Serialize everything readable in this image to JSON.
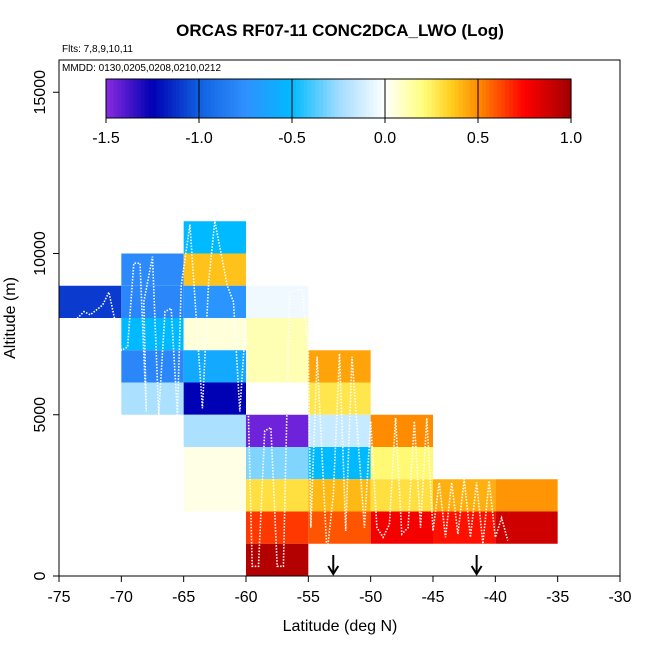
{
  "chart_data": {
    "type": "heatmap",
    "title": "ORCAS RF07-11 CONC2DCA_LWO (Log)",
    "flights_label": "Flts: 7,8,9,10,11",
    "dates_label": "MMDD: 0130,0205,0208,0210,0212",
    "xlabel": "Latitude (deg N)",
    "ylabel": "Altitude (m)",
    "xlim": [
      -75,
      -30
    ],
    "ylim": [
      0,
      16000
    ],
    "x_ticks": [
      -75,
      -70,
      -65,
      -60,
      -55,
      -50,
      -45,
      -40,
      -35,
      -30
    ],
    "y_ticks": [
      0,
      5000,
      10000,
      15000
    ],
    "x_tick_labels": [
      "-75",
      "-70",
      "-65",
      "-60",
      "-55",
      "-50",
      "-45",
      "-40",
      "-35",
      "-30"
    ],
    "y_tick_labels": [
      "0",
      "5000",
      "10000",
      "15000"
    ],
    "colorbar": {
      "range": [
        -1.5,
        1.0
      ],
      "ticks": [
        -1.5,
        -1.0,
        -0.5,
        0.0,
        0.5,
        1.0
      ],
      "tick_labels": [
        "-1.5",
        "-1.0",
        "-0.5",
        "0.0",
        "0.5",
        "1.0"
      ],
      "stops": [
        {
          "v": -1.5,
          "c": "#8a2be2"
        },
        {
          "v": -1.25,
          "c": "#0000b4"
        },
        {
          "v": -1.0,
          "c": "#1060e0"
        },
        {
          "v": -0.75,
          "c": "#3090ff"
        },
        {
          "v": -0.5,
          "c": "#00baff"
        },
        {
          "v": -0.25,
          "c": "#a0dcff"
        },
        {
          "v": 0.0,
          "c": "#ffffff"
        },
        {
          "v": 0.2,
          "c": "#ffff80"
        },
        {
          "v": 0.35,
          "c": "#ffd020"
        },
        {
          "v": 0.5,
          "c": "#ff8c00"
        },
        {
          "v": 0.75,
          "c": "#ff0000"
        },
        {
          "v": 1.0,
          "c": "#a00000"
        }
      ]
    },
    "bin_height_m": 1000,
    "cells": [
      {
        "lat": -75,
        "lat2": -70,
        "alt": 8000,
        "alt2": 9000,
        "value": -1.1
      },
      {
        "lat": -70,
        "lat2": -65,
        "alt": 9000,
        "alt2": 10000,
        "value": -0.78
      },
      {
        "lat": -70,
        "lat2": -65,
        "alt": 8000,
        "alt2": 9000,
        "value": -0.8
      },
      {
        "lat": -70,
        "lat2": -65,
        "alt": 7000,
        "alt2": 8000,
        "value": -0.5
      },
      {
        "lat": -70,
        "lat2": -65,
        "alt": 6000,
        "alt2": 7000,
        "value": -0.8
      },
      {
        "lat": -70,
        "lat2": -65,
        "alt": 5000,
        "alt2": 6000,
        "value": -0.22
      },
      {
        "lat": -65,
        "lat2": -60,
        "alt": 10000,
        "alt2": 11000,
        "value": -0.5
      },
      {
        "lat": -65,
        "lat2": -60,
        "alt": 9000,
        "alt2": 10000,
        "value": 0.38
      },
      {
        "lat": -65,
        "lat2": -60,
        "alt": 8000,
        "alt2": 9000,
        "value": -0.72
      },
      {
        "lat": -65,
        "lat2": -60,
        "alt": 7000,
        "alt2": 8000,
        "value": 0.06
      },
      {
        "lat": -65,
        "lat2": -60,
        "alt": 6000,
        "alt2": 7000,
        "value": -0.6
      },
      {
        "lat": -65,
        "lat2": -60,
        "alt": 5000,
        "alt2": 6000,
        "value": -1.25
      },
      {
        "lat": -65,
        "lat2": -60,
        "alt": 4000,
        "alt2": 5000,
        "value": -0.22
      },
      {
        "lat": -65,
        "lat2": -60,
        "alt": 2000,
        "alt2": 4000,
        "value": 0.04
      },
      {
        "lat": -60,
        "lat2": -55,
        "alt": 8000,
        "alt2": 9000,
        "value": -0.04
      },
      {
        "lat": -60,
        "lat2": -55,
        "alt": 6000,
        "alt2": 8000,
        "value": 0.12
      },
      {
        "lat": -60,
        "lat2": -55,
        "alt": 4000,
        "alt2": 5000,
        "value": -1.45
      },
      {
        "lat": -60,
        "lat2": -55,
        "alt": 3000,
        "alt2": 4000,
        "value": -0.3
      },
      {
        "lat": -60,
        "lat2": -55,
        "alt": 2000,
        "alt2": 3000,
        "value": 0.3
      },
      {
        "lat": -60,
        "lat2": -55,
        "alt": 1000,
        "alt2": 2000,
        "value": 0.65
      },
      {
        "lat": -60,
        "lat2": -55,
        "alt": 0,
        "alt2": 1000,
        "value": 0.95
      },
      {
        "lat": -55,
        "lat2": -50,
        "alt": 6000,
        "alt2": 7000,
        "value": 0.45
      },
      {
        "lat": -55,
        "lat2": -50,
        "alt": 5000,
        "alt2": 6000,
        "value": 0.28
      },
      {
        "lat": -55,
        "lat2": -50,
        "alt": 4000,
        "alt2": 5000,
        "value": -0.15
      },
      {
        "lat": -55,
        "lat2": -50,
        "alt": 3000,
        "alt2": 4000,
        "value": -0.5
      },
      {
        "lat": -55,
        "lat2": -50,
        "alt": 2000,
        "alt2": 3000,
        "value": 0.4
      },
      {
        "lat": -55,
        "lat2": -50,
        "alt": 1000,
        "alt2": 2000,
        "value": 0.6
      },
      {
        "lat": -50,
        "lat2": -45,
        "alt": 4000,
        "alt2": 5000,
        "value": 0.5
      },
      {
        "lat": -50,
        "lat2": -45,
        "alt": 3000,
        "alt2": 4000,
        "value": 0.22
      },
      {
        "lat": -50,
        "lat2": -45,
        "alt": 2000,
        "alt2": 3000,
        "value": 0.3
      },
      {
        "lat": -50,
        "lat2": -45,
        "alt": 1000,
        "alt2": 2000,
        "value": 0.78
      },
      {
        "lat": -45,
        "lat2": -40,
        "alt": 2000,
        "alt2": 3000,
        "value": 0.42
      },
      {
        "lat": -45,
        "lat2": -40,
        "alt": 1000,
        "alt2": 2000,
        "value": 0.72
      },
      {
        "lat": -40,
        "lat2": -35,
        "alt": 2000,
        "alt2": 3000,
        "value": 0.48
      },
      {
        "lat": -40,
        "lat2": -35,
        "alt": 1000,
        "alt2": 2000,
        "value": 0.88
      }
    ],
    "annotations": [
      {
        "type": "arrow",
        "lat": -53,
        "direction": "down"
      },
      {
        "type": "arrow",
        "lat": -41.5,
        "direction": "down"
      }
    ],
    "flight_track": {
      "style": "white dotted",
      "points": [
        [
          -75,
          0
        ],
        [
          -75,
          600
        ],
        [
          -73.5,
          8000
        ],
        [
          -73,
          8200
        ],
        [
          -72.5,
          8100
        ],
        [
          -71.5,
          8400
        ],
        [
          -71,
          8800
        ],
        [
          -70,
          7000
        ],
        [
          -69.5,
          7100
        ],
        [
          -69,
          9700
        ],
        [
          -68.5,
          9700
        ],
        [
          -68,
          5100
        ],
        [
          -68.2,
          8500
        ],
        [
          -67.5,
          9900
        ],
        [
          -67,
          5000
        ],
        [
          -66.5,
          8200
        ],
        [
          -66,
          8300
        ],
        [
          -65.5,
          5000
        ],
        [
          -65.2,
          9000
        ],
        [
          -64.5,
          10900
        ],
        [
          -63.5,
          5200
        ],
        [
          -63,
          9100
        ],
        [
          -62.5,
          11000
        ],
        [
          -61.5,
          9000
        ],
        [
          -61,
          8500
        ],
        [
          -60.5,
          5100
        ],
        [
          -60,
          8000
        ],
        [
          -59.5,
          300
        ],
        [
          -59,
          300
        ],
        [
          -58.5,
          4500
        ],
        [
          -58,
          4600
        ],
        [
          -57.5,
          300
        ],
        [
          -57,
          300
        ],
        [
          -56.5,
          8800
        ],
        [
          -55.5,
          8900
        ],
        [
          -55,
          7000
        ],
        [
          -54.8,
          1500
        ],
        [
          -54.3,
          6800
        ],
        [
          -53.5,
          700
        ],
        [
          -53,
          2500
        ],
        [
          -52.5,
          6900
        ],
        [
          -52,
          1400
        ],
        [
          -51.5,
          6800
        ],
        [
          -50.5,
          1500
        ],
        [
          -50,
          4800
        ],
        [
          -49.5,
          1500
        ],
        [
          -49,
          1200
        ],
        [
          -48.5,
          1600
        ],
        [
          -48,
          4900
        ],
        [
          -47.5,
          1300
        ],
        [
          -47,
          1500
        ],
        [
          -46.5,
          4800
        ],
        [
          -46,
          1500
        ],
        [
          -45.5,
          4900
        ],
        [
          -45,
          1400
        ],
        [
          -44.5,
          2900
        ],
        [
          -44,
          1200
        ],
        [
          -43.5,
          2900
        ],
        [
          -43,
          1300
        ],
        [
          -42.5,
          3000
        ],
        [
          -42,
          1200
        ],
        [
          -41.5,
          2900
        ],
        [
          -41,
          1000
        ],
        [
          -40.5,
          2950
        ],
        [
          -40,
          1200
        ],
        [
          -39.5,
          1800
        ],
        [
          -39,
          1100
        ]
      ]
    }
  }
}
